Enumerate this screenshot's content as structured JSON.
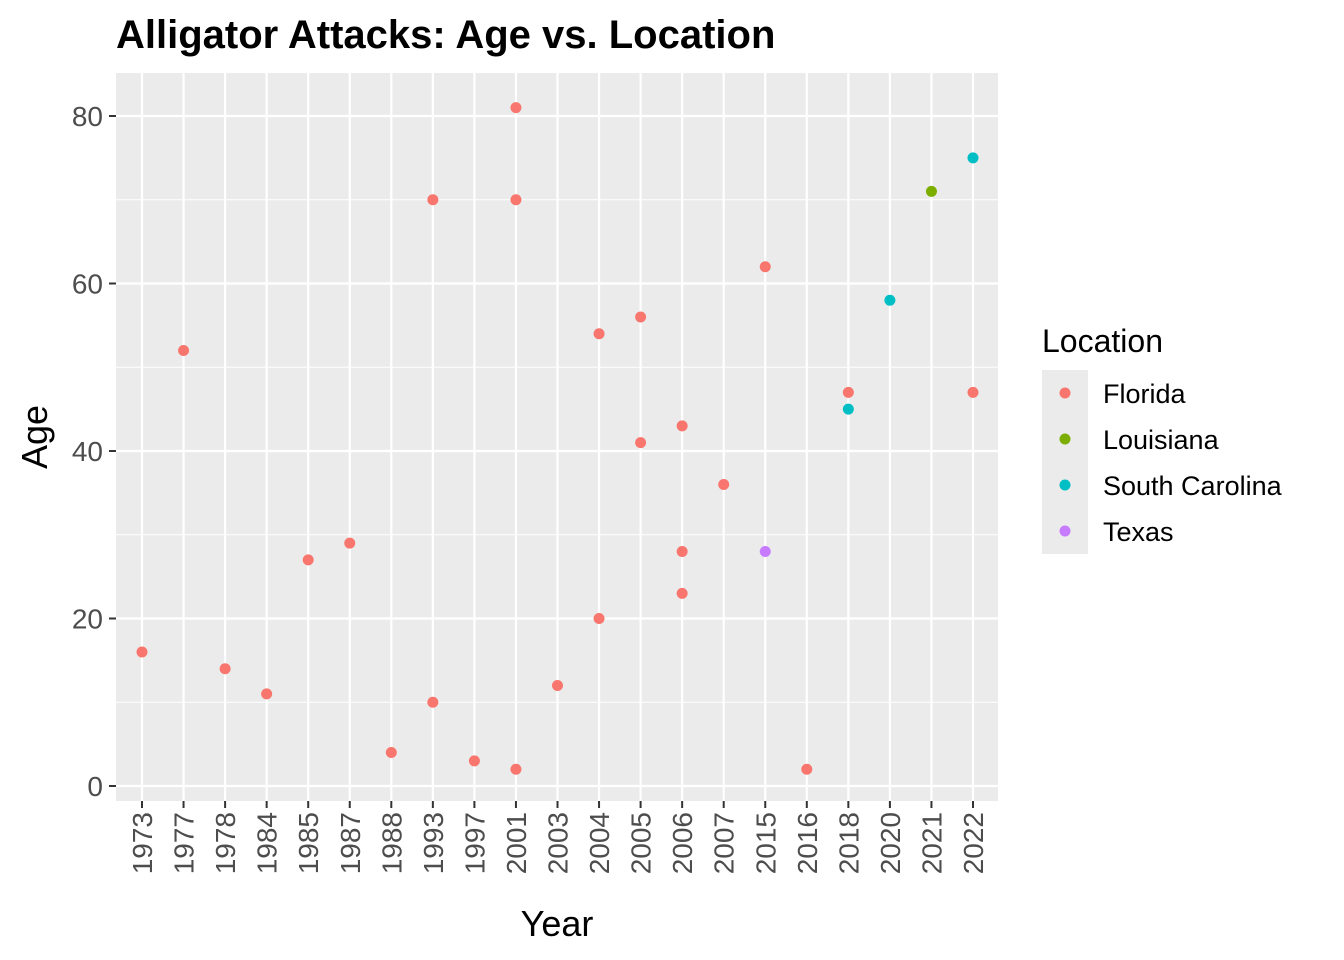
{
  "chart_data": {
    "type": "scatter",
    "title": "Alligator Attacks: Age vs. Location",
    "xlabel": "Year",
    "ylabel": "Age",
    "categories": [
      "1973",
      "1977",
      "1978",
      "1984",
      "1985",
      "1987",
      "1988",
      "1993",
      "1997",
      "2001",
      "2003",
      "2004",
      "2005",
      "2006",
      "2007",
      "2015",
      "2016",
      "2018",
      "2020",
      "2021",
      "2022"
    ],
    "ylim": [
      -2,
      85
    ],
    "y_ticks": [
      0,
      20,
      40,
      60,
      80
    ],
    "grid": true,
    "legend": {
      "title": "Location",
      "placement": "right",
      "entries": [
        "Florida",
        "Louisiana",
        "South Carolina",
        "Texas"
      ]
    },
    "colors": {
      "Florida": "#F8766D",
      "Louisiana": "#7CAE00",
      "South Carolina": "#00BFC4",
      "Texas": "#C77CFF",
      "panel": "#EBEBEB",
      "grid": "#FFFFFF"
    },
    "series": [
      {
        "name": "Florida",
        "points": [
          {
            "x": "1973",
            "y": 16
          },
          {
            "x": "1977",
            "y": 52
          },
          {
            "x": "1978",
            "y": 14
          },
          {
            "x": "1984",
            "y": 11
          },
          {
            "x": "1985",
            "y": 27
          },
          {
            "x": "1987",
            "y": 29
          },
          {
            "x": "1988",
            "y": 4
          },
          {
            "x": "1993",
            "y": 70
          },
          {
            "x": "1993",
            "y": 10
          },
          {
            "x": "1997",
            "y": 3
          },
          {
            "x": "2001",
            "y": 81
          },
          {
            "x": "2001",
            "y": 70
          },
          {
            "x": "2001",
            "y": 2
          },
          {
            "x": "2003",
            "y": 12
          },
          {
            "x": "2004",
            "y": 54
          },
          {
            "x": "2004",
            "y": 20
          },
          {
            "x": "2005",
            "y": 56
          },
          {
            "x": "2005",
            "y": 41
          },
          {
            "x": "2006",
            "y": 43
          },
          {
            "x": "2006",
            "y": 28
          },
          {
            "x": "2006",
            "y": 23
          },
          {
            "x": "2007",
            "y": 36
          },
          {
            "x": "2015",
            "y": 62
          },
          {
            "x": "2016",
            "y": 2
          },
          {
            "x": "2018",
            "y": 47
          },
          {
            "x": "2022",
            "y": 47
          }
        ]
      },
      {
        "name": "Louisiana",
        "points": [
          {
            "x": "2021",
            "y": 71
          }
        ]
      },
      {
        "name": "South Carolina",
        "points": [
          {
            "x": "2018",
            "y": 45
          },
          {
            "x": "2020",
            "y": 58
          },
          {
            "x": "2022",
            "y": 75
          }
        ]
      },
      {
        "name": "Texas",
        "points": [
          {
            "x": "2015",
            "y": 28
          }
        ]
      }
    ]
  }
}
